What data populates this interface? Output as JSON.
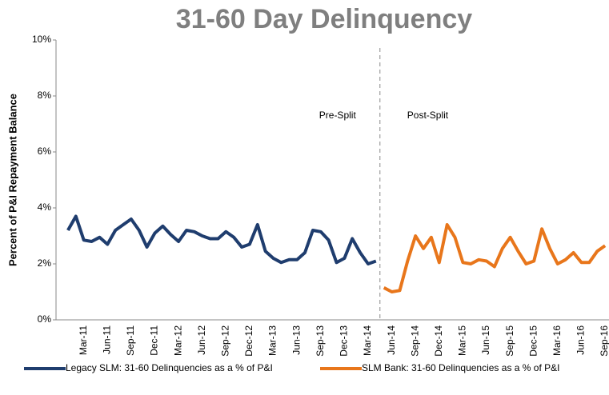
{
  "chart_data": {
    "type": "line",
    "title": "31-60 Day Delinquency",
    "y_label": "Percent of P&I Repayment  Balance",
    "categories": [
      null,
      null,
      "Mar-11",
      null,
      null,
      "Jun-11",
      null,
      null,
      "Sep-11",
      null,
      null,
      "Dec-11",
      null,
      null,
      "Mar-12",
      null,
      null,
      "Jun-12",
      null,
      null,
      "Sep-12",
      null,
      null,
      "Dec-12",
      null,
      null,
      "Mar-13",
      null,
      null,
      "Jun-13",
      null,
      null,
      "Sep-13",
      null,
      null,
      "Dec-13",
      null,
      null,
      "Mar-14",
      null,
      null,
      "Jun-14",
      null,
      null,
      "Sep-14",
      null,
      null,
      "Dec-14",
      null,
      null,
      "Mar-15",
      null,
      null,
      "Jun-15",
      null,
      null,
      "Sep-15",
      null,
      null,
      "Dec-15",
      null,
      null,
      "Mar-16",
      null,
      null,
      "Jun-16",
      null,
      null,
      "Sep-16"
    ],
    "series": [
      {
        "name": "Legacy SLM: 31-60 Delinquencies as a % of P&I",
        "color": "#1f3d6e",
        "values": [
          3.2,
          3.7,
          2.85,
          2.8,
          2.95,
          2.7,
          3.2,
          3.4,
          3.6,
          3.2,
          2.6,
          3.1,
          3.35,
          3.05,
          2.8,
          3.2,
          3.15,
          3.0,
          2.9,
          2.9,
          3.15,
          2.95,
          2.6,
          2.7,
          3.4,
          2.45,
          2.2,
          2.05,
          2.15,
          2.15,
          2.4,
          3.2,
          3.15,
          2.85,
          2.05,
          2.2,
          2.9,
          2.4,
          2.0,
          2.1,
          null,
          null,
          null,
          null,
          null,
          null,
          null,
          null,
          null,
          null,
          null,
          null,
          null,
          null,
          null,
          null,
          null,
          null,
          null,
          null,
          null,
          null,
          null,
          null,
          null,
          null,
          null,
          null,
          null
        ]
      },
      {
        "name": "SLM Bank: 31-60 Delinquencies as a % of P&I",
        "color": "#e8761b",
        "values": [
          null,
          null,
          null,
          null,
          null,
          null,
          null,
          null,
          null,
          null,
          null,
          null,
          null,
          null,
          null,
          null,
          null,
          null,
          null,
          null,
          null,
          null,
          null,
          null,
          null,
          null,
          null,
          null,
          null,
          null,
          null,
          null,
          null,
          null,
          null,
          null,
          null,
          null,
          null,
          null,
          1.15,
          1.0,
          1.05,
          2.1,
          3.0,
          2.55,
          2.95,
          2.05,
          3.4,
          2.95,
          2.05,
          2.0,
          2.15,
          2.1,
          1.9,
          2.55,
          2.95,
          2.45,
          2.0,
          2.1,
          3.25,
          2.55,
          2.0,
          2.15,
          2.4,
          2.05,
          2.05,
          2.45,
          2.65
        ]
      }
    ],
    "annotations": [
      "Pre-Split",
      "Post-Split"
    ],
    "ylim": [
      0,
      10
    ],
    "yticks": [
      {
        "value": 0,
        "label": "0%"
      },
      {
        "value": 2,
        "label": "2%"
      },
      {
        "value": 4,
        "label": "4%"
      },
      {
        "value": 6,
        "label": "6%"
      },
      {
        "value": 8,
        "label": "8%"
      },
      {
        "value": 10,
        "label": "10%"
      }
    ],
    "grid": false,
    "legend": "bottom"
  }
}
